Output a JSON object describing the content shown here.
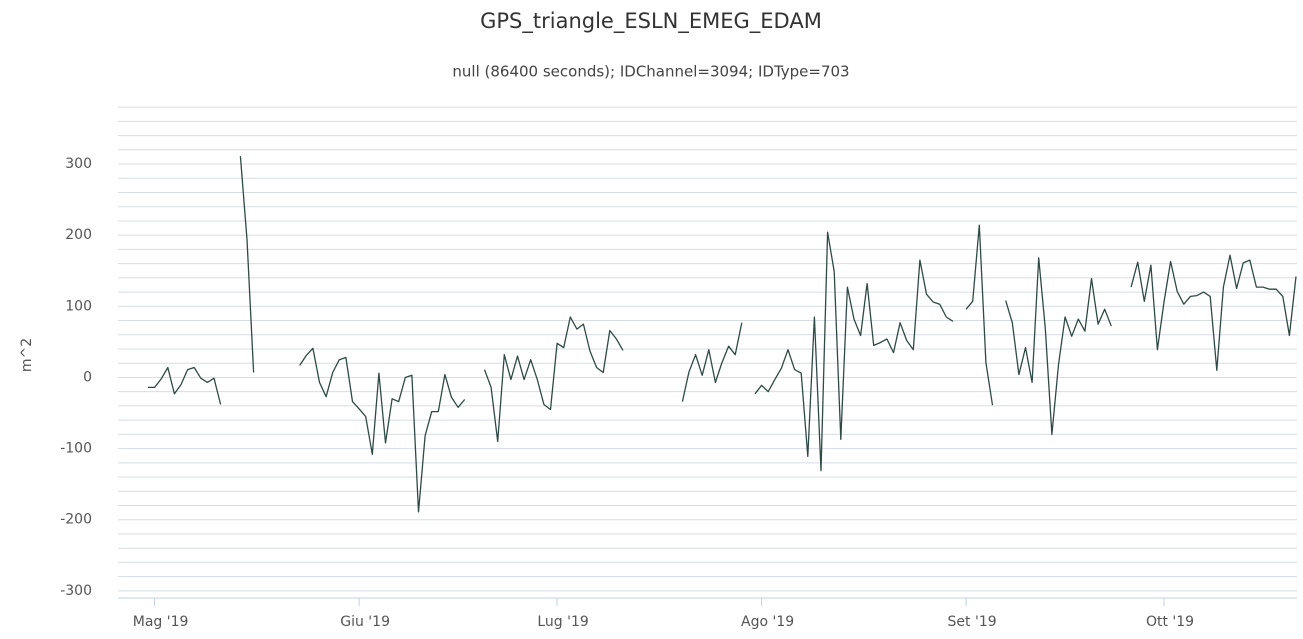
{
  "chart_data": {
    "type": "line",
    "title": "GPS_triangle_ESLN_EMEG_EDAM",
    "subtitle": "null (86400 seconds); IDChannel=3094; IDType=703",
    "y_label": "m^2",
    "categories": [
      null,
      "Mag '19",
      null,
      null,
      null,
      null,
      null,
      null,
      null,
      null,
      null,
      null,
      null,
      null,
      null,
      null,
      null,
      null,
      null,
      null,
      null,
      null,
      null,
      null,
      null,
      null,
      null,
      null,
      null,
      null,
      null,
      null,
      "Giu '19",
      null,
      null,
      null,
      null,
      null,
      null,
      null,
      null,
      null,
      null,
      null,
      null,
      null,
      null,
      null,
      null,
      null,
      null,
      null,
      null,
      null,
      null,
      null,
      null,
      null,
      null,
      null,
      null,
      null,
      "Lug '19",
      null,
      null,
      null,
      null,
      null,
      null,
      null,
      null,
      null,
      null,
      null,
      null,
      null,
      null,
      null,
      null,
      null,
      null,
      null,
      null,
      null,
      null,
      null,
      null,
      null,
      null,
      null,
      null,
      null,
      null,
      "Ago '19",
      null,
      null,
      null,
      null,
      null,
      null,
      null,
      null,
      null,
      null,
      null,
      null,
      null,
      null,
      null,
      null,
      null,
      null,
      null,
      null,
      null,
      null,
      null,
      null,
      null,
      null,
      null,
      null,
      null,
      null,
      "Set '19",
      null,
      null,
      null,
      null,
      null,
      null,
      null,
      null,
      null,
      null,
      null,
      null,
      null,
      null,
      null,
      null,
      null,
      null,
      null,
      null,
      null,
      null,
      null,
      null,
      null,
      null,
      null,
      null,
      null,
      "Ott '19",
      null,
      null,
      null,
      null,
      null,
      null,
      null,
      null,
      null,
      null,
      null,
      null,
      null,
      null,
      null,
      null,
      null,
      null,
      null,
      null
    ],
    "series": [
      {
        "name": "GPS_triangle_ESLN_EMEG_EDAM",
        "color": "#2f4a44",
        "values": [
          -14,
          -14,
          -2,
          14,
          -23,
          -10,
          11,
          14,
          -1,
          -7,
          -1,
          -38,
          null,
          null,
          311,
          194,
          7,
          null,
          null,
          null,
          null,
          null,
          null,
          17,
          31,
          41,
          -7,
          -27,
          7,
          25,
          28,
          -34,
          -44,
          -55,
          -108,
          6,
          -92,
          -30,
          -34,
          0,
          3,
          -189,
          -82,
          -48,
          -48,
          4,
          -28,
          -42,
          -31,
          null,
          null,
          11,
          -14,
          -90,
          32,
          -3,
          30,
          -3,
          25,
          -3,
          -38,
          -45,
          48,
          42,
          85,
          68,
          75,
          37,
          14,
          7,
          66,
          54,
          38,
          null,
          null,
          null,
          null,
          null,
          null,
          null,
          null,
          -34,
          8,
          32,
          3,
          39,
          -7,
          21,
          44,
          32,
          77,
          null,
          -23,
          -11,
          -20,
          -3,
          13,
          39,
          11,
          6,
          -111,
          85,
          -131,
          204,
          149,
          -87,
          127,
          82,
          59,
          132,
          45,
          49,
          54,
          35,
          77,
          52,
          39,
          165,
          117,
          106,
          103,
          85,
          79,
          null,
          96,
          107,
          214,
          21,
          -39,
          null,
          108,
          77,
          4,
          42,
          -7,
          168,
          69,
          -80,
          18,
          85,
          58,
          82,
          65,
          139,
          75,
          96,
          72,
          null,
          null,
          127,
          162,
          107,
          158,
          39,
          106,
          163,
          121,
          103,
          114,
          115,
          120,
          114,
          10,
          127,
          172,
          125,
          161,
          165,
          127,
          127,
          124,
          124,
          114,
          59,
          142
        ]
      }
    ],
    "ylim": [
      -310,
      390
    ],
    "yticks": [
      -300,
      -200,
      -100,
      0,
      100,
      200,
      300
    ],
    "minor_yticks": [
      -300,
      -280,
      -260,
      -240,
      -220,
      -200,
      -180,
      -160,
      -140,
      -120,
      -100,
      -80,
      -60,
      -40,
      -20,
      0,
      20,
      40,
      60,
      80,
      100,
      120,
      140,
      160,
      180,
      200,
      220,
      240,
      260,
      280,
      300,
      320,
      340,
      360,
      380
    ],
    "grid": true
  }
}
